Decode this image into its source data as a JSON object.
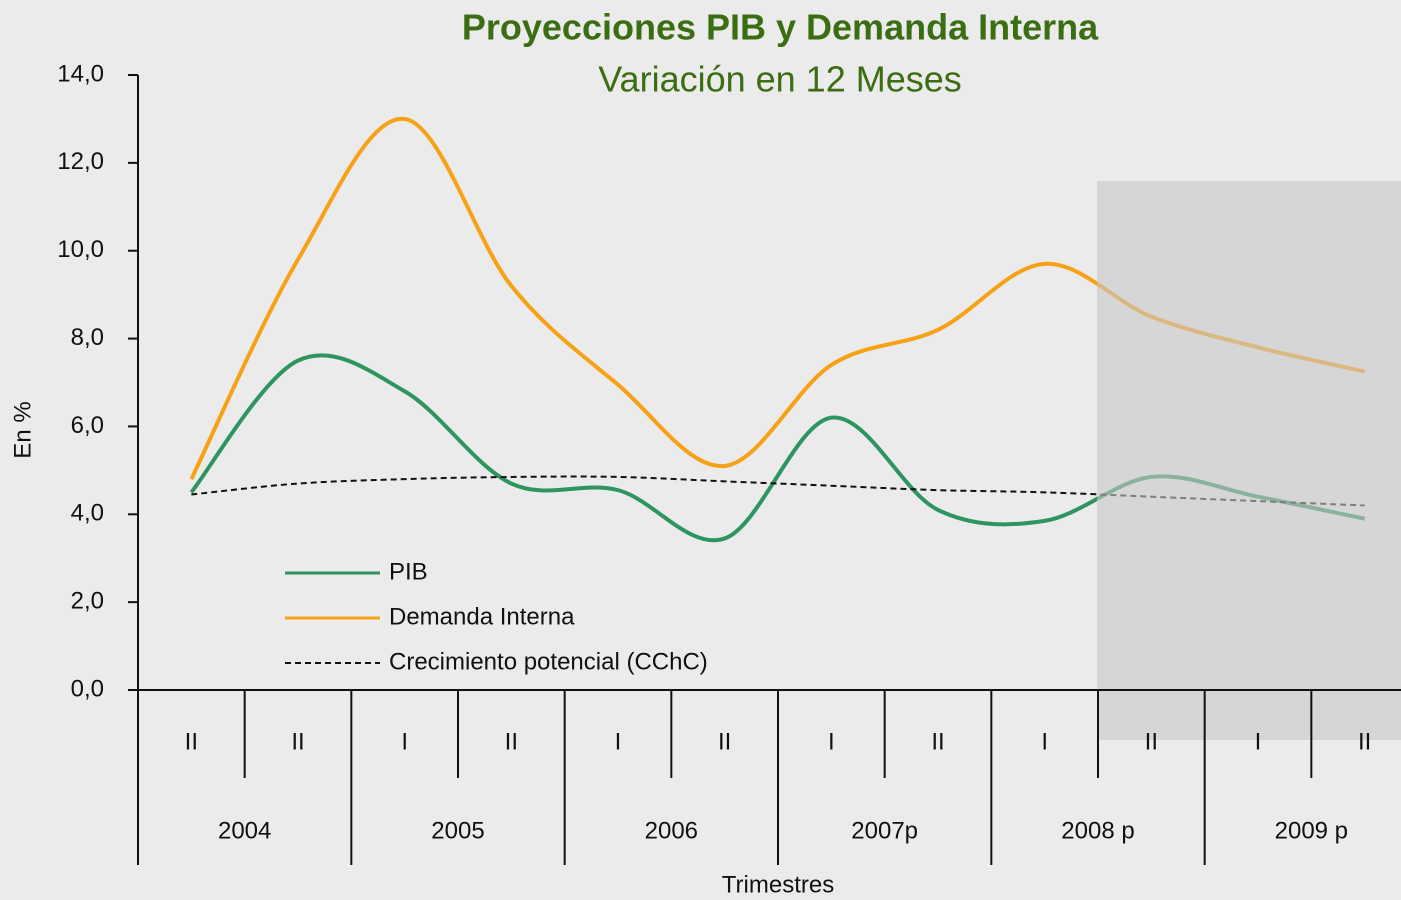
{
  "chart_data": {
    "type": "line",
    "title": "Proyecciones PIB y Demanda Interna",
    "subtitle": "Variación en 12 Meses",
    "y_label": "En %",
    "x_label": "Trimestres",
    "categories": [
      "II",
      "II",
      "I",
      "II",
      "I",
      "II",
      "I",
      "II",
      "I",
      "II",
      "I",
      "II"
    ],
    "years": [
      "2004",
      "2005",
      "2006",
      "2007p",
      "2008 p",
      "2009 p"
    ],
    "ylim": [
      0,
      14
    ],
    "yticks": [
      {
        "value": 0,
        "label": "0,0"
      },
      {
        "value": 2,
        "label": "2,0"
      },
      {
        "value": 4,
        "label": "4,0"
      },
      {
        "value": 6,
        "label": "6,0"
      },
      {
        "value": 8,
        "label": "8,0"
      },
      {
        "value": 10,
        "label": "10,0"
      },
      {
        "value": 12,
        "label": "12,0"
      },
      {
        "value": 14,
        "label": "14,0"
      }
    ],
    "legend": "lower left",
    "series": [
      {
        "name": "PIB",
        "color": "#2e9460",
        "dash": false,
        "values": [
          4.5,
          7.5,
          6.8,
          4.7,
          4.55,
          3.45,
          6.2,
          4.1,
          3.85,
          4.85,
          4.4,
          3.9
        ]
      },
      {
        "name": "Demanda Interna",
        "color": "#f7a116",
        "dash": false,
        "values": [
          4.8,
          9.8,
          13.0,
          9.2,
          6.95,
          5.1,
          7.4,
          8.2,
          9.7,
          8.5,
          7.8,
          7.25
        ]
      },
      {
        "name": "Crecimiento potencial (CChC)",
        "color": "#111111",
        "dash": true,
        "values": [
          4.45,
          4.7,
          4.8,
          4.85,
          4.85,
          4.75,
          4.65,
          4.55,
          4.5,
          4.4,
          4.3,
          4.2
        ]
      }
    ]
  }
}
